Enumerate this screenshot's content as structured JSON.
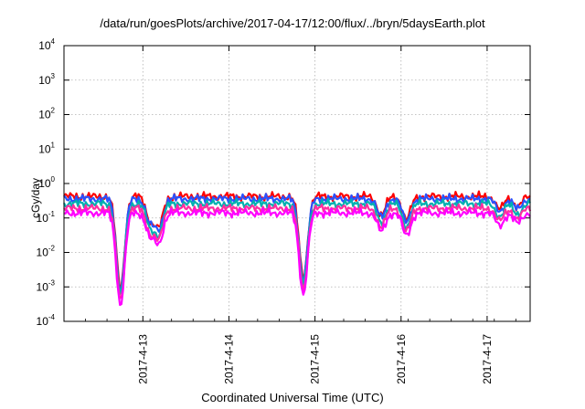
{
  "chart_data": {
    "type": "line",
    "title": "/data/run/goesPlots/archive/2017-04-17/12:00/flux/../bryn/5daysEarth.plot",
    "xlabel": "Coordinated Universal Time (UTC)",
    "ylabel": "cGy/day",
    "x_axis": {
      "type": "time",
      "range": [
        "2017-04-12 02:00",
        "2017-04-17 12:00"
      ],
      "ticks": [
        "2017-4-13",
        "2017-4-14",
        "2017-4-15",
        "2017-4-16",
        "2017-4-17"
      ]
    },
    "y_axis": {
      "scale": "log",
      "ylim": [
        0.0001,
        10000
      ],
      "ticks": [
        {
          "base": "10",
          "exp": "-4"
        },
        {
          "base": "10",
          "exp": "-3"
        },
        {
          "base": "10",
          "exp": "-2"
        },
        {
          "base": "10",
          "exp": "-1"
        },
        {
          "base": "10",
          "exp": "0"
        },
        {
          "base": "10",
          "exp": "1"
        },
        {
          "base": "10",
          "exp": "2"
        },
        {
          "base": "10",
          "exp": "3"
        },
        {
          "base": "10",
          "exp": "4"
        }
      ]
    },
    "grid": true,
    "series": [
      {
        "color": "#ff0000",
        "base": 0.42,
        "dip_factor": 1.0
      },
      {
        "color": "#2a52ff",
        "base": 0.36,
        "dip_factor": 1.0
      },
      {
        "color": "#00b0b0",
        "base": 0.26,
        "dip_factor": 1.0
      },
      {
        "color": "#ff2ea0",
        "base": 0.19,
        "dip_factor": 1.0
      },
      {
        "color": "#ff00ff",
        "base": 0.14,
        "dip_factor": 1.0
      }
    ],
    "dips": [
      {
        "time": "2017-04-12 17:45",
        "min_value": 0.0003
      },
      {
        "time": "2017-04-14 20:45",
        "min_value": 0.0006
      },
      {
        "time": "2017-04-13 02:00",
        "min_value": 0.03
      },
      {
        "time": "2017-04-13 04:30",
        "min_value": 0.02
      },
      {
        "time": "2017-04-15 18:30",
        "min_value": 0.04
      },
      {
        "time": "2017-04-16 01:30",
        "min_value": 0.03
      },
      {
        "time": "2017-04-17 03:30",
        "min_value": 0.06
      },
      {
        "time": "2017-04-17 08:30",
        "min_value": 0.07
      }
    ]
  }
}
